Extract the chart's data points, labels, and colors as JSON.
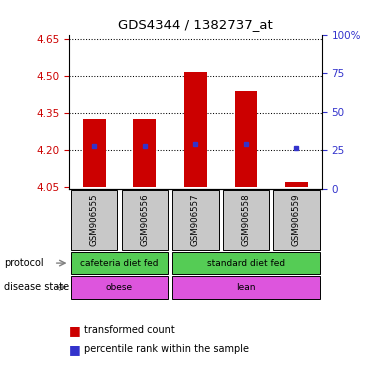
{
  "title": "GDS4344 / 1382737_at",
  "samples": [
    "GSM906555",
    "GSM906556",
    "GSM906557",
    "GSM906558",
    "GSM906559"
  ],
  "bar_bottom": [
    4.05,
    4.05,
    4.05,
    4.05,
    4.05
  ],
  "bar_top": [
    4.327,
    4.327,
    4.518,
    4.438,
    4.068
  ],
  "blue_marker_y": [
    4.215,
    4.215,
    4.222,
    4.222,
    4.208
  ],
  "ylim": [
    4.04,
    4.67
  ],
  "yticks_left": [
    4.05,
    4.2,
    4.35,
    4.5,
    4.65
  ],
  "right_pct": [
    0,
    25,
    50,
    75,
    100
  ],
  "right_labels": [
    "0",
    "25",
    "50",
    "75",
    "100%"
  ],
  "bar_color": "#cc0000",
  "blue_color": "#3333cc",
  "dotted_lines": [
    4.2,
    4.35,
    4.5,
    4.65
  ],
  "protocol_labels": [
    "cafeteria diet fed",
    "standard diet fed"
  ],
  "protocol_color": "#55cc55",
  "disease_labels": [
    "obese",
    "lean"
  ],
  "disease_color": "#dd55dd",
  "sample_bg_color": "#c8c8c8",
  "left_tick_color": "#cc0000",
  "right_tick_color": "#3333cc"
}
